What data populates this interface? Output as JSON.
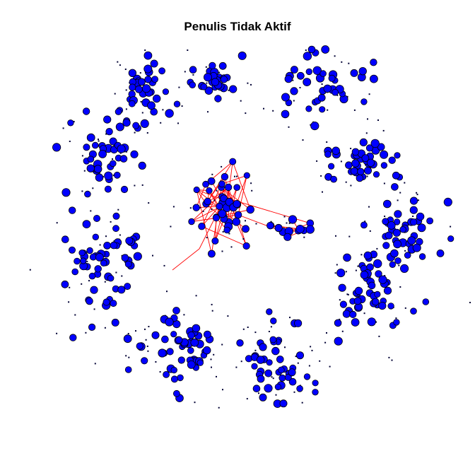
{
  "title": "Penulis Tidak Aktif",
  "network": {
    "node_fill": "#0000ff",
    "node_stroke": "#000000",
    "edge_color": "#ff0000",
    "clusters": [
      {
        "name": "cluster-top-left-upper",
        "count": 36,
        "seed": 11
      },
      {
        "name": "cluster-top-center",
        "count": 26,
        "seed": 12
      },
      {
        "name": "cluster-top-right",
        "count": 40,
        "seed": 13
      },
      {
        "name": "cluster-left-upper",
        "count": 44,
        "seed": 14
      },
      {
        "name": "cluster-right-upper",
        "count": 40,
        "seed": 15
      },
      {
        "name": "cluster-right-middle",
        "count": 46,
        "seed": 16
      },
      {
        "name": "cluster-left-lower",
        "count": 60,
        "seed": 17
      },
      {
        "name": "cluster-bottom-right",
        "count": 46,
        "seed": 18
      },
      {
        "name": "cluster-bottom-left",
        "count": 52,
        "seed": 19
      },
      {
        "name": "cluster-bottom-center",
        "count": 46,
        "seed": 20
      },
      {
        "name": "cluster-center-hub",
        "count": 40,
        "seed": 21
      },
      {
        "name": "cluster-center-east",
        "count": 14,
        "seed": 22
      }
    ]
  }
}
